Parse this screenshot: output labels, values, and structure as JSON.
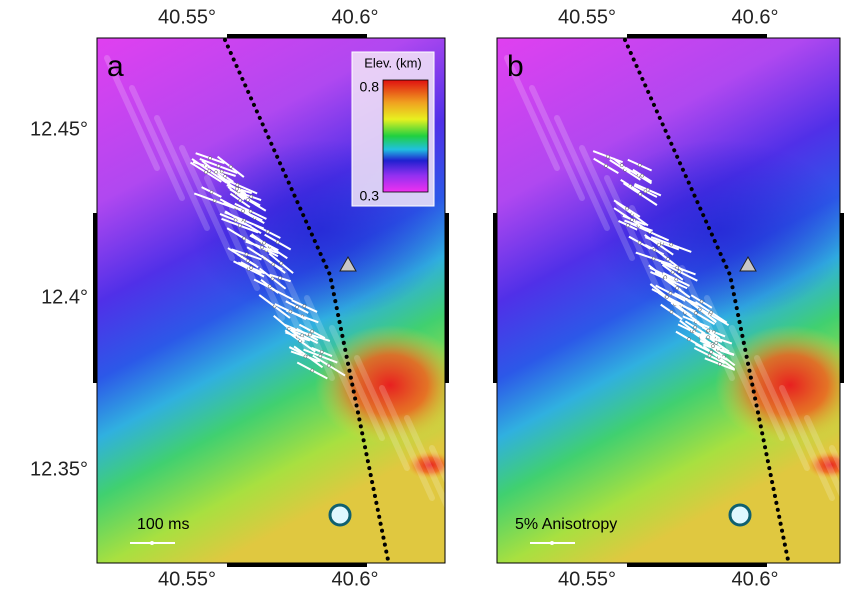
{
  "panels": [
    {
      "label": "a",
      "scale_label": "100 ms"
    },
    {
      "label": "b",
      "scale_label": "5% Anisotropy"
    }
  ],
  "axes": {
    "x_ticks": [
      "40.55°",
      "40.6°"
    ],
    "y_ticks": [
      "12.45°",
      "12.4°",
      "12.35°"
    ]
  },
  "colorbar": {
    "title": "Elev. (km)",
    "max_label": "0.8",
    "min_label": "0.3"
  }
}
